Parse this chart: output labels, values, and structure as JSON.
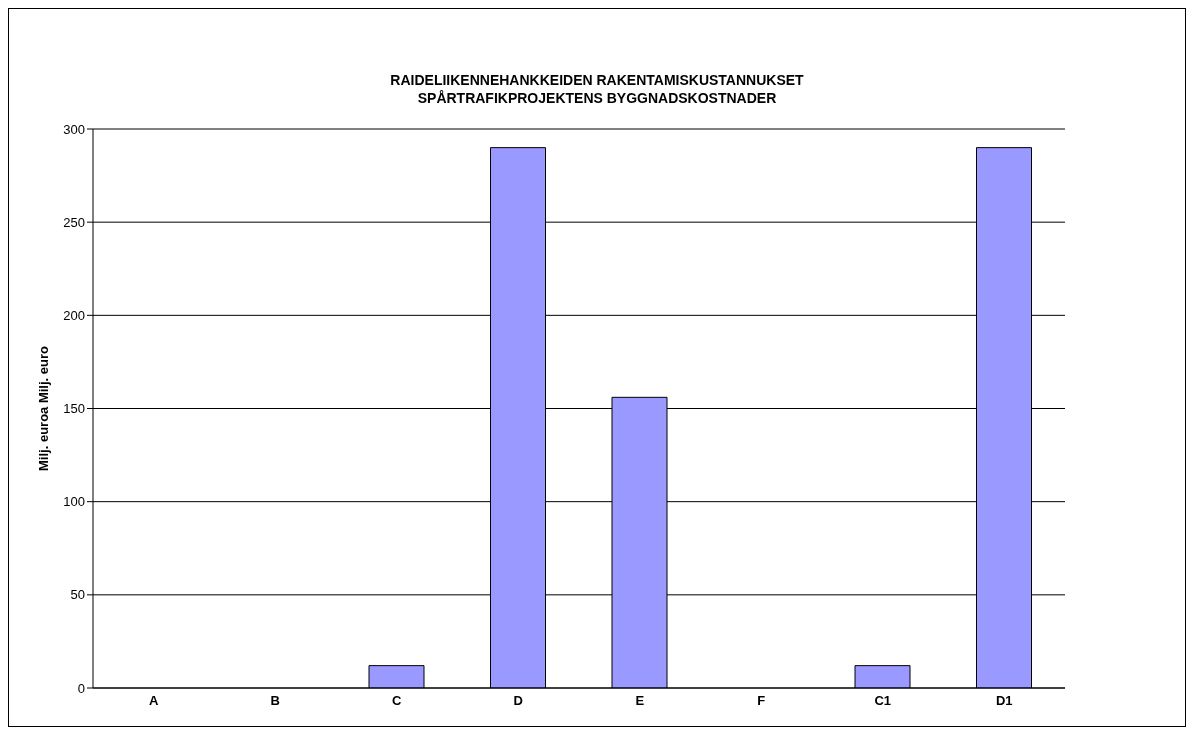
{
  "chart_data": {
    "type": "bar",
    "title": "RAIDELIIKENNEHANKKEIDEN RAKENTAMISKUSTANNUKSET",
    "subtitle": "SPÅRTRAFIKPROJEKTENS BYGGNADSKOSTNADER",
    "ylabel": "Milj. euroa Milj. euro",
    "categories": [
      "A",
      "B",
      "C",
      "D",
      "E",
      "F",
      "C1",
      "D1"
    ],
    "values": [
      0,
      0,
      12,
      290,
      156,
      0,
      12,
      290
    ],
    "color": "#9999ff",
    "ylim": [
      0,
      300
    ],
    "yticks": [
      0,
      50,
      100,
      150,
      200,
      250,
      300
    ],
    "grid": "y",
    "legend": false
  }
}
